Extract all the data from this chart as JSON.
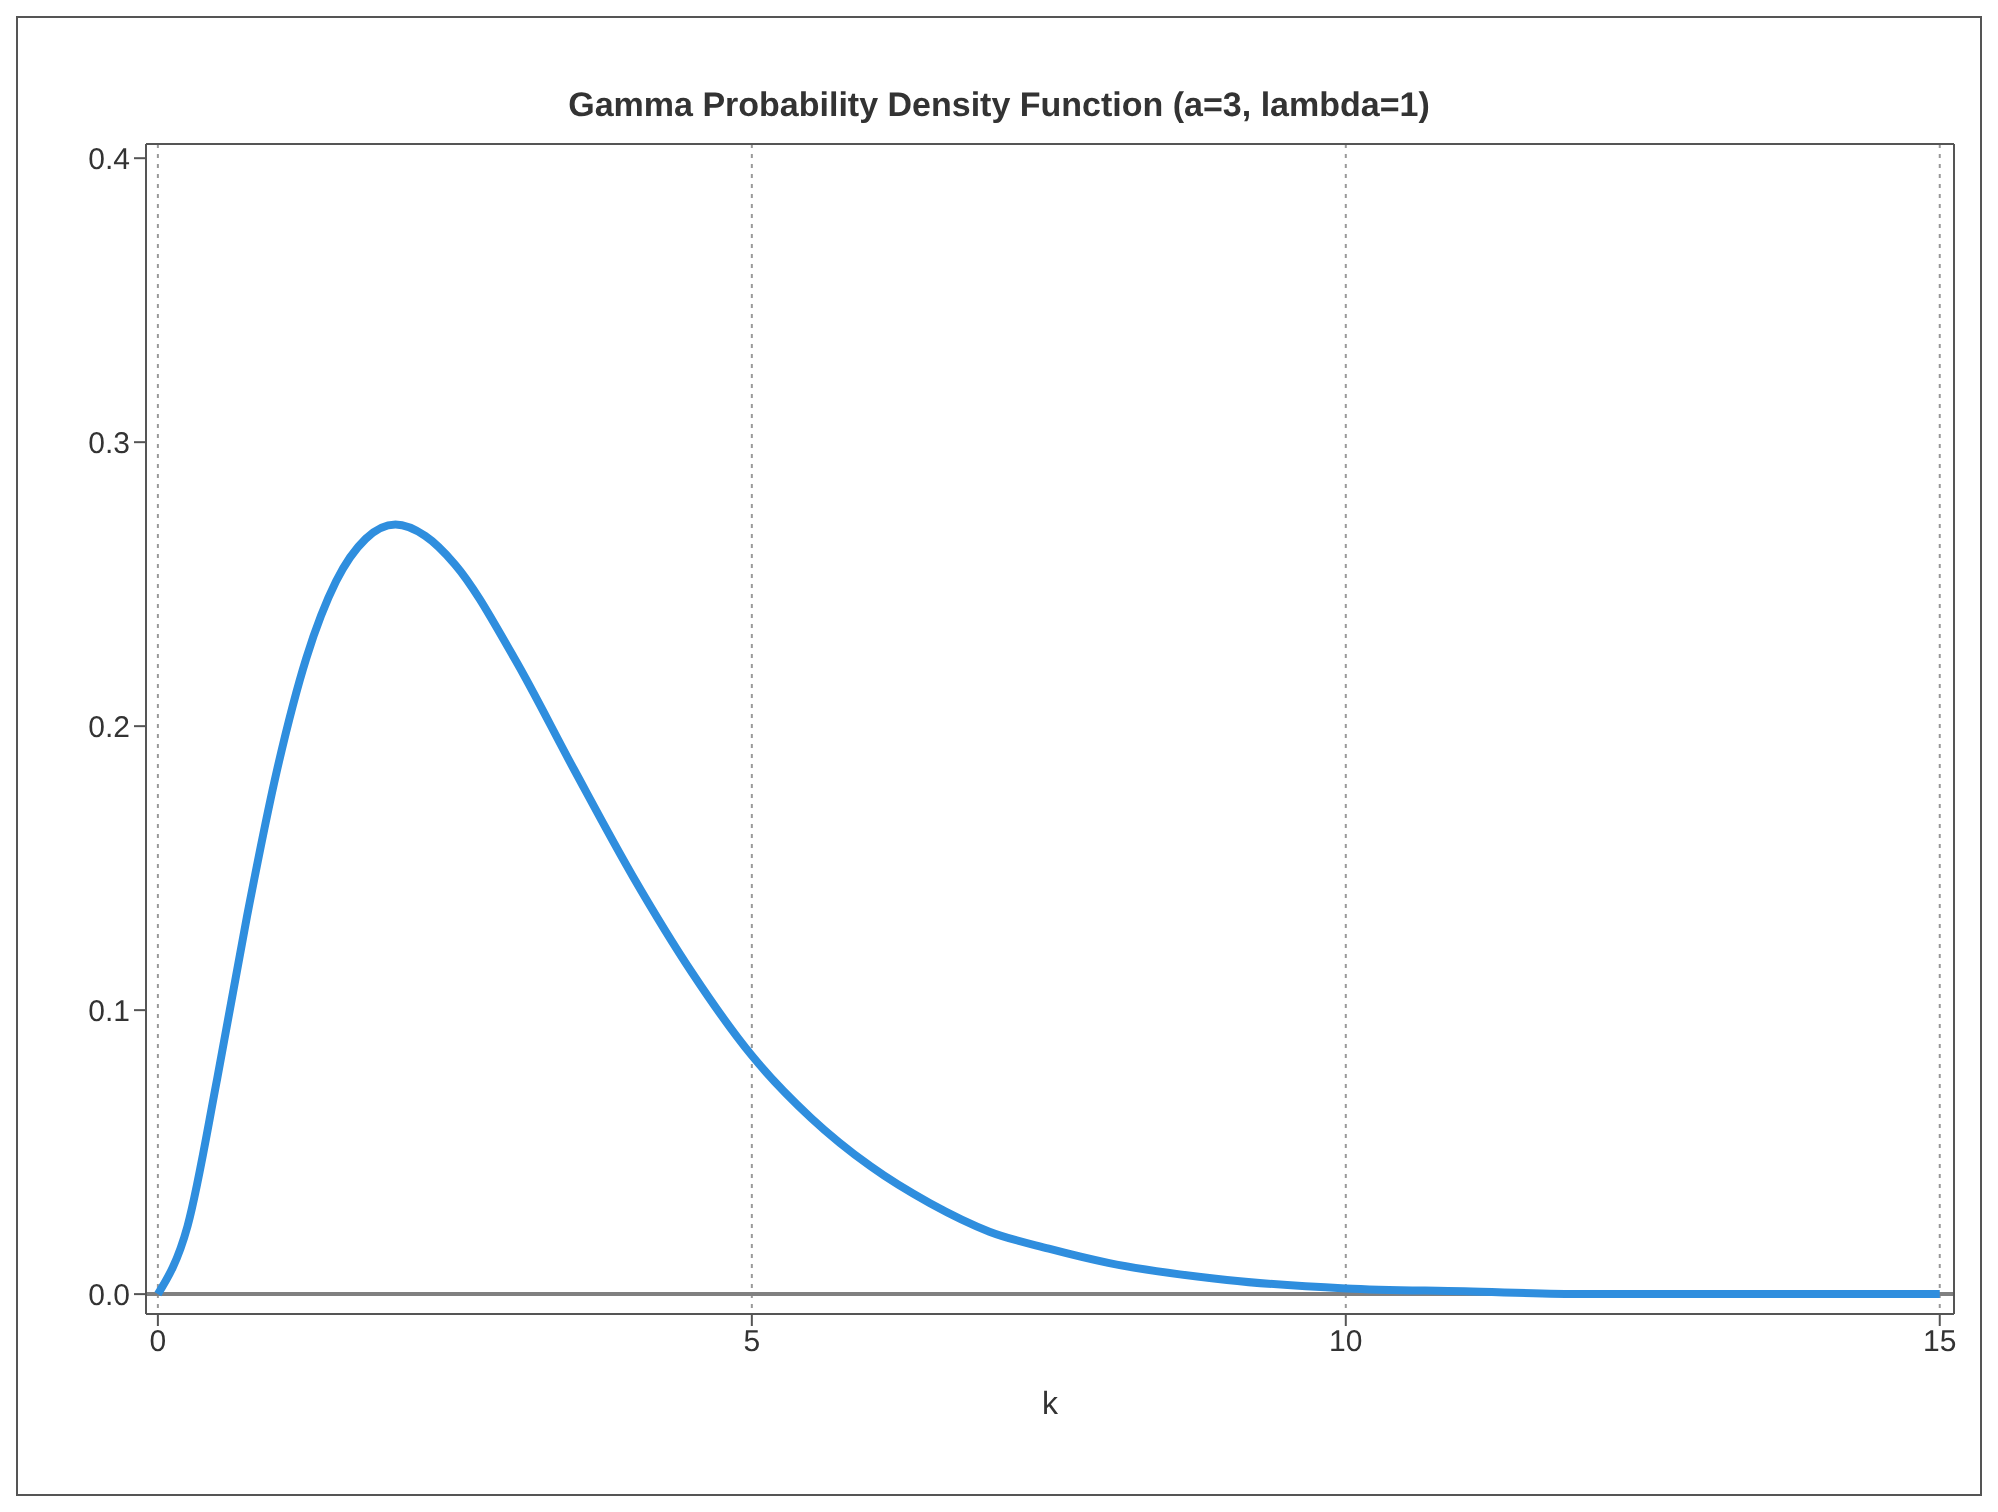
{
  "chart_data": {
    "type": "line",
    "title": "Gamma Probability Density Function (a=3, lambda=1)",
    "xlabel": "k",
    "x": [
      0,
      0.25,
      0.5,
      0.75,
      1,
      1.25,
      1.5,
      1.75,
      2,
      2.25,
      2.5,
      3,
      3.5,
      4,
      4.5,
      5,
      5.5,
      6,
      6.5,
      7,
      7.5,
      8,
      9,
      10,
      11,
      12,
      13,
      14,
      15
    ],
    "series": [
      {
        "color": "#2f8ede",
        "values": [
          0,
          0.024,
          0.076,
          0.133,
          0.184,
          0.224,
          0.251,
          0.266,
          0.271,
          0.267,
          0.257,
          0.224,
          0.185,
          0.147,
          0.113,
          0.084,
          0.062,
          0.045,
          0.032,
          0.022,
          0.016,
          0.011,
          0.005,
          0.002,
          0.001,
          0,
          0,
          0,
          0
        ]
      }
    ],
    "xlim": [
      -0.1,
      15.12
    ],
    "ylim": [
      -0.007,
      0.405
    ],
    "xticks": [
      0,
      5,
      10,
      15
    ],
    "yticks": [
      {
        "value": 0,
        "label": "0.0"
      },
      0.1,
      0.2,
      0.3,
      0.4
    ],
    "grid": "x",
    "marker": "none",
    "line_style": "solid",
    "ref_lines": [
      {
        "axis": "y",
        "value": 0,
        "color": "#808080",
        "line_style": "solid"
      }
    ]
  }
}
